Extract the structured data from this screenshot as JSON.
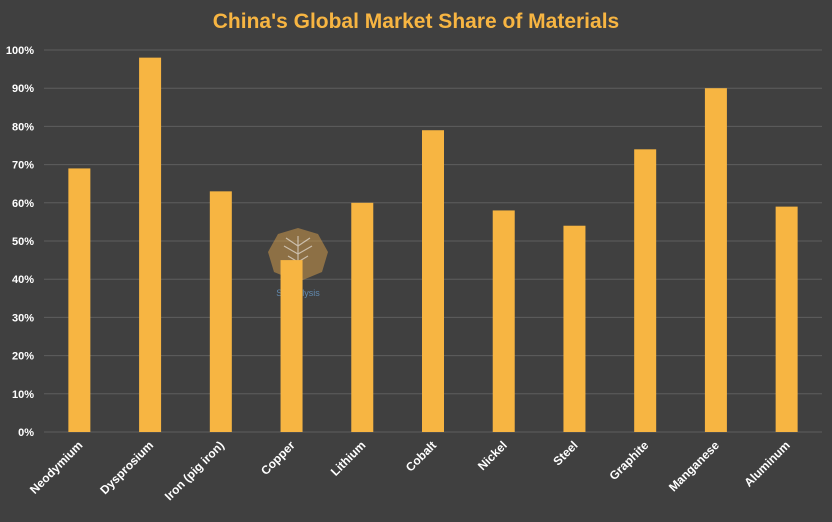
{
  "colors": {
    "background": "#404040",
    "bar": "#F7B542",
    "title": "#F7B542",
    "grid": "#5e5e5e",
    "text": "#ffffff"
  },
  "watermark": {
    "text": "Sum  alysis"
  },
  "chart_data": {
    "type": "bar",
    "title": "China's Global Market Share of Materials",
    "categories": [
      "Neodymium",
      "Dysprosium",
      "Iron (pig iron)",
      "Copper",
      "Lithium",
      "Cobalt",
      "Nickel",
      "Steel",
      "Graphite",
      "Manganese",
      "Aluminum"
    ],
    "values": [
      69,
      98,
      63,
      45,
      60,
      79,
      58,
      54,
      74,
      90,
      59
    ],
    "ylim": [
      0,
      100
    ],
    "yticks": [
      "0%",
      "10%",
      "20%",
      "30%",
      "40%",
      "50%",
      "60%",
      "70%",
      "80%",
      "90%",
      "100%"
    ],
    "xlabel": "",
    "ylabel": "",
    "grid": true,
    "legend": "none"
  }
}
